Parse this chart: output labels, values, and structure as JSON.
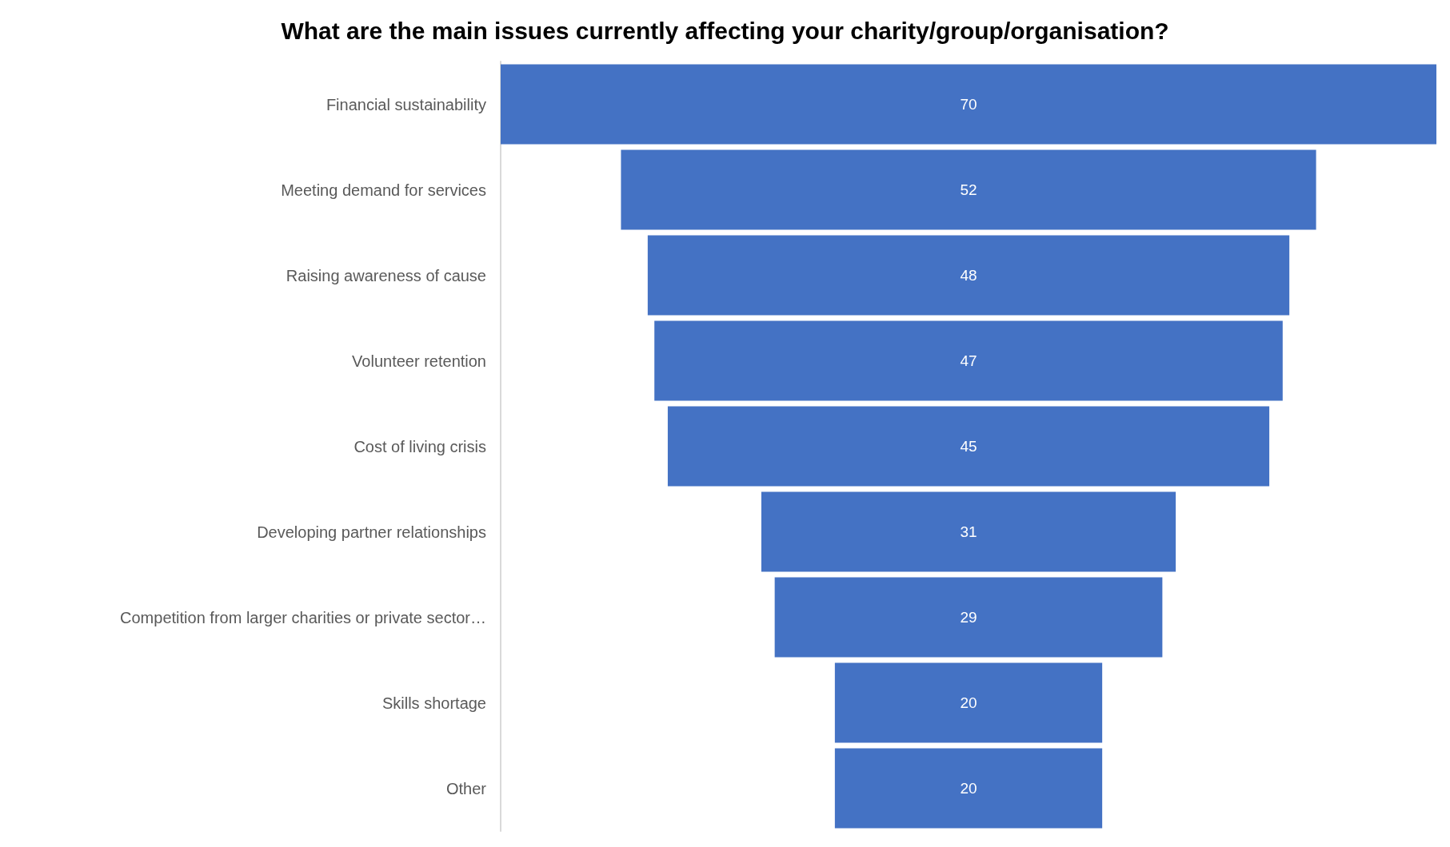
{
  "chart_data": {
    "type": "other",
    "title": "What are the main issues currently affecting your charity/group/organisation?",
    "categories": [
      "Financial sustainability",
      "Meeting demand for services",
      "Raising awareness of cause",
      "Volunteer retention",
      "Cost of living crisis",
      "Developing partner relationships",
      "Competition from larger charities or private sector…",
      "Skills shortage",
      "Other"
    ],
    "values": [
      70,
      52,
      48,
      47,
      45,
      31,
      29,
      20,
      20
    ],
    "color": "#4472c4",
    "data_labels": true
  }
}
